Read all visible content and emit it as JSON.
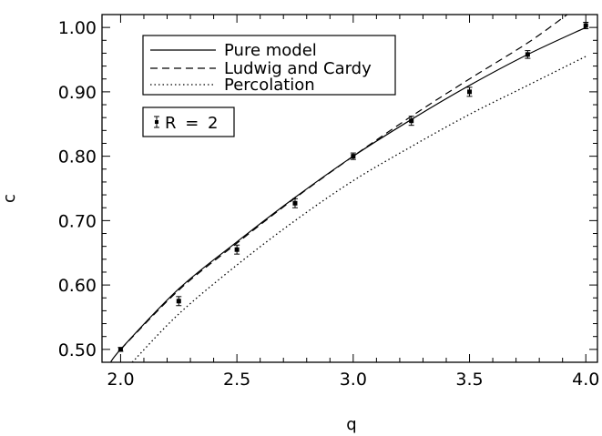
{
  "chart_data": {
    "type": "line",
    "xlabel": "q",
    "ylabel": "c",
    "xlim": [
      1.92,
      4.05
    ],
    "ylim": [
      0.48,
      1.02
    ],
    "x_ticks": [
      "2.0",
      "2.5",
      "3.0",
      "3.5",
      "4.0"
    ],
    "y_ticks": [
      "0.50",
      "0.60",
      "0.70",
      "0.80",
      "0.90",
      "1.00"
    ],
    "grid": false,
    "legend_position": "top-left",
    "series": [
      {
        "name": "Pure model",
        "style": "solid",
        "x": [
          1.95,
          2.0,
          2.25,
          2.5,
          2.75,
          3.0,
          3.25,
          3.5,
          3.75,
          4.0
        ],
        "y": [
          0.475,
          0.5,
          0.594,
          0.667,
          0.736,
          0.8,
          0.857,
          0.91,
          0.958,
          1.0
        ]
      },
      {
        "name": "Ludwig and Cardy",
        "style": "dashed",
        "x": [
          2.0,
          2.25,
          2.5,
          2.75,
          3.0,
          3.25,
          3.5,
          3.75,
          3.92
        ],
        "y": [
          0.5,
          0.592,
          0.665,
          0.735,
          0.8,
          0.862,
          0.92,
          0.976,
          1.02
        ]
      },
      {
        "name": "Percolation",
        "style": "dotted",
        "x": [
          2.05,
          2.25,
          2.5,
          2.75,
          3.0,
          3.25,
          3.5,
          3.75,
          4.0
        ],
        "y": [
          0.48,
          0.555,
          0.631,
          0.7,
          0.762,
          0.815,
          0.865,
          0.91,
          0.955
        ]
      },
      {
        "name": "R = 2",
        "style": "errorbar",
        "x": [
          2.0,
          2.25,
          2.5,
          2.75,
          3.0,
          3.25,
          3.5,
          3.75,
          4.0
        ],
        "y": [
          0.5,
          0.575,
          0.655,
          0.727,
          0.8,
          0.855,
          0.9,
          0.958,
          1.003
        ],
        "err": [
          0.003,
          0.007,
          0.007,
          0.007,
          0.005,
          0.007,
          0.007,
          0.006,
          0.005
        ]
      }
    ]
  }
}
